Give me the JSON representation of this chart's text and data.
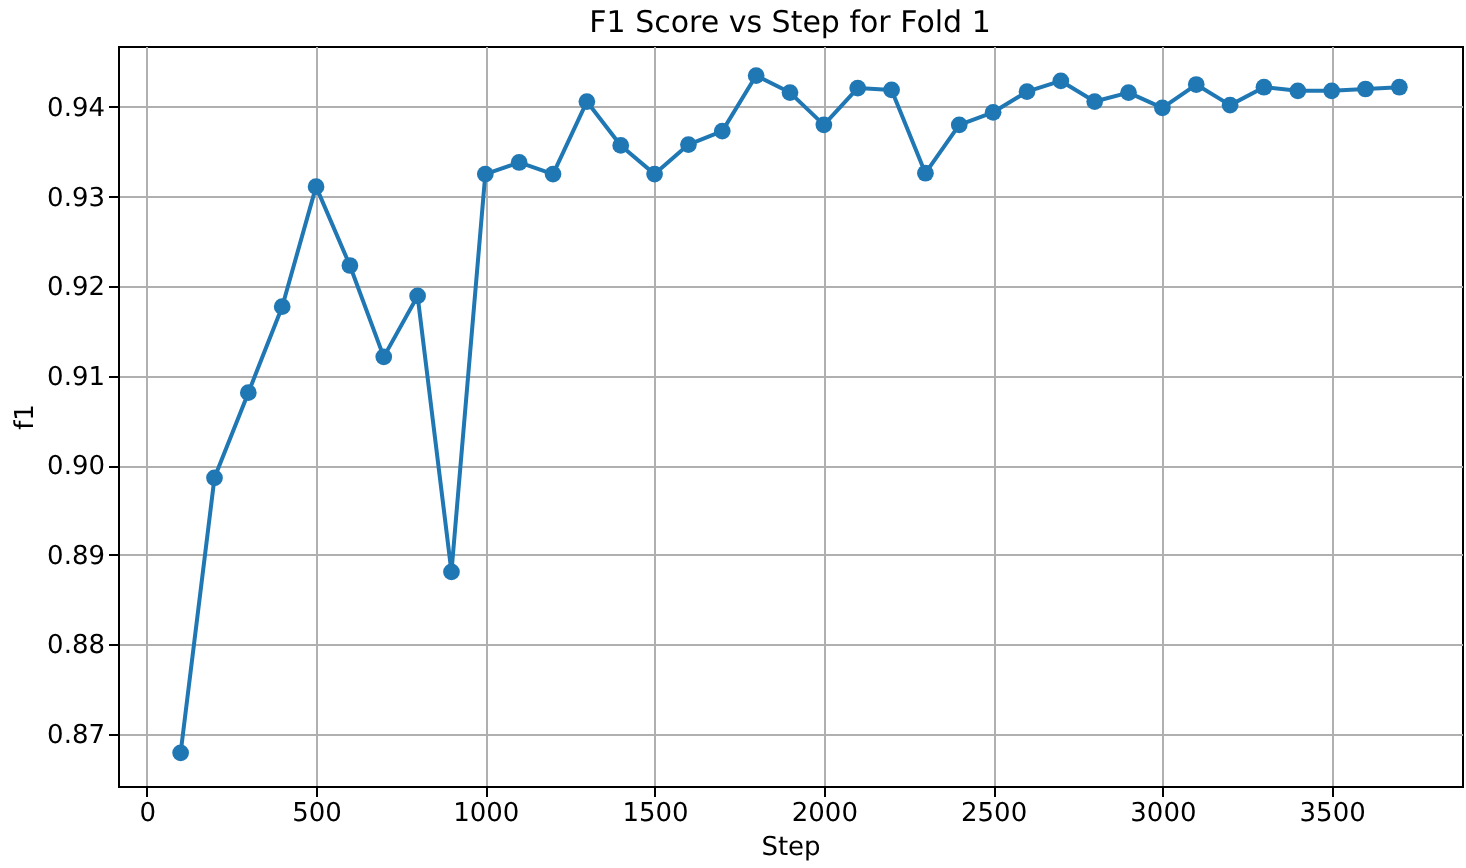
{
  "chart_data": {
    "type": "line",
    "title": "F1 Score vs Step for Fold 1",
    "xlabel": "Step",
    "ylabel": "f1",
    "x": [
      100,
      200,
      300,
      400,
      500,
      600,
      700,
      800,
      900,
      1000,
      1100,
      1200,
      1300,
      1400,
      1500,
      1600,
      1700,
      1800,
      1900,
      2000,
      2100,
      2200,
      2300,
      2400,
      2500,
      2600,
      2700,
      2800,
      2900,
      3000,
      3100,
      3200,
      3300,
      3400,
      3500,
      3600,
      3700
    ],
    "series": [
      {
        "color": "#1f77b4",
        "values": [
          0.8679,
          0.8986,
          0.9081,
          0.9177,
          0.9311,
          0.9223,
          0.9121,
          0.9189,
          0.8881,
          0.9325,
          0.9338,
          0.9325,
          0.9406,
          0.9357,
          0.9325,
          0.9358,
          0.9373,
          0.9435,
          0.9416,
          0.938,
          0.9421,
          0.9419,
          0.9326,
          0.938,
          0.9394,
          0.9417,
          0.9429,
          0.9406,
          0.9416,
          0.9399,
          0.9425,
          0.9402,
          0.9422,
          0.9418,
          0.9418,
          0.942,
          0.9422
        ]
      }
    ],
    "xlim": [
      -85,
      3885
    ],
    "xticks": [
      0,
      500,
      1000,
      1500,
      2000,
      2500,
      3000,
      3500
    ],
    "ylim": [
      0.8642,
      0.9468
    ],
    "yticks": [
      {
        "value": 0.87,
        "label": "0.87"
      },
      {
        "value": 0.88,
        "label": "0.88"
      },
      {
        "value": 0.89,
        "label": "0.89"
      },
      {
        "value": 0.9,
        "label": "0.90"
      },
      {
        "value": 0.91,
        "label": "0.91"
      },
      {
        "value": 0.92,
        "label": "0.92"
      },
      {
        "value": 0.93,
        "label": "0.93"
      },
      {
        "value": 0.94,
        "label": "0.94"
      }
    ],
    "grid": true,
    "marker": "circle",
    "line_style": "solid"
  }
}
